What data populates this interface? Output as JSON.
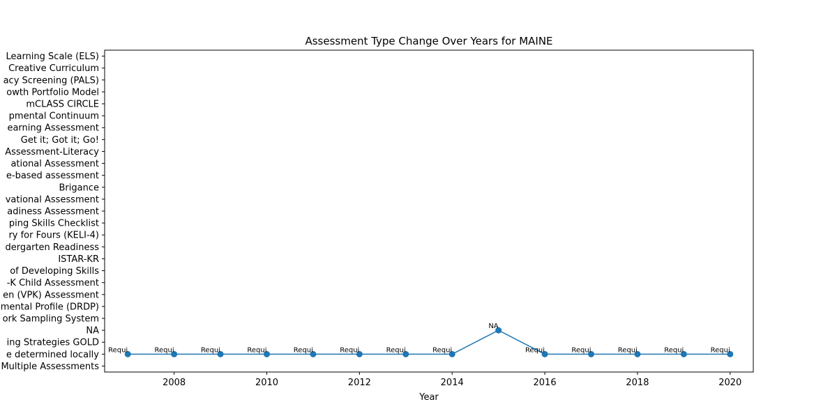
{
  "chart_data": {
    "type": "line",
    "title": "Assessment Type Change Over Years for MAINE",
    "xlabel": "Year",
    "ylabel": "",
    "xlim": [
      2006.5,
      2020.5
    ],
    "x_ticks": [
      2008,
      2010,
      2012,
      2014,
      2016,
      2018,
      2020
    ],
    "y_categories": [
      "Multiple Assessments",
      "e determined locally",
      "ing Strategies GOLD",
      "NA",
      "ork Sampling System",
      "mental Profile (DRDP)",
      "en (VPK) Assessment",
      "-K Child Assessment",
      "of Developing Skills",
      "ISTAR-KR",
      "dergarten Readiness",
      "ry for Fours (KELI-4) ",
      "ping Skills Checklist",
      "adiness Assessment",
      "vational Assessment",
      "Brigance",
      "e-based assessment",
      "ational Assessment ",
      "Assessment-Literacy",
      "Get it; Got it; Go!",
      "earning Assessment",
      "pmental Continuum",
      "mCLASS CIRCLE",
      "owth Portfolio Model",
      "acy Screening (PALS)",
      "Creative Curriculum",
      "Learning Scale (ELS)"
    ],
    "series": [
      {
        "color": "#1f77b4",
        "x": [
          2007,
          2008,
          2009,
          2010,
          2011,
          2012,
          2013,
          2014,
          2015,
          2016,
          2017,
          2018,
          2019,
          2020
        ],
        "y": [
          "e determined locally",
          "e determined locally",
          "e determined locally",
          "e determined locally",
          "e determined locally",
          "e determined locally",
          "e determined locally",
          "e determined locally",
          "NA",
          "e determined locally",
          "e determined locally",
          "e determined locally",
          "e determined locally",
          "e determined locally"
        ],
        "point_labels": [
          "Requi",
          "Requi",
          "Requi",
          "Requi",
          "Requi",
          "Requi",
          "Requi",
          "Requi",
          "NA",
          "Requi",
          "Requi",
          "Requi",
          "Requi",
          "Requi"
        ]
      }
    ],
    "grid": false,
    "legend": "none"
  }
}
